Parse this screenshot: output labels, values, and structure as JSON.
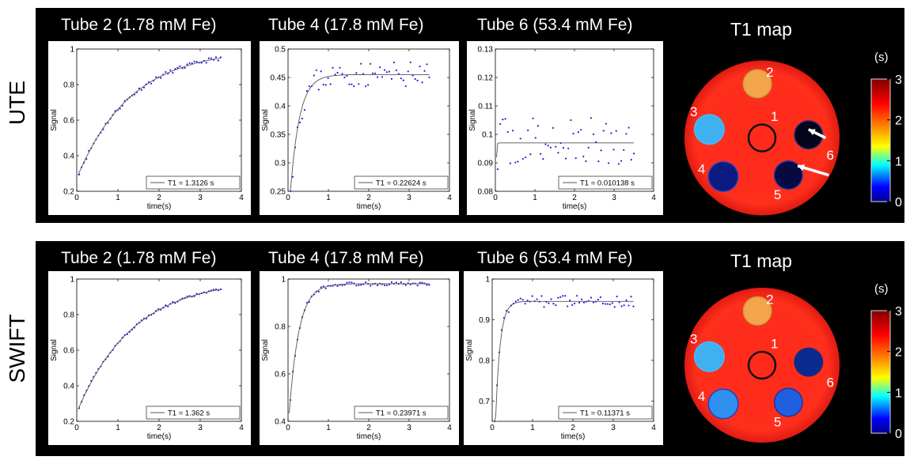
{
  "rows": [
    {
      "label": "UTE"
    },
    {
      "label": "SWIFT"
    }
  ],
  "map_title": "T1 map",
  "colorbar": {
    "unit": "(s)",
    "ticks": [
      "0",
      "1",
      "2",
      "3"
    ]
  },
  "tube_numbers": [
    "1",
    "2",
    "3",
    "4",
    "5",
    "6"
  ],
  "chart_data": [
    {
      "type": "scatter",
      "panel": "UTE",
      "title": "Tube 2 (1.78 mM Fe)",
      "xlabel": "time(s)",
      "ylabel": "Signal",
      "xlim": [
        0,
        4
      ],
      "ylim": [
        0.2,
        1
      ],
      "xticks": [
        0,
        1,
        2,
        3,
        4
      ],
      "yticks": [
        0.2,
        0.4,
        0.6,
        0.8,
        1
      ],
      "ytick_labels": [
        "0.2",
        "0.4",
        "0.6",
        "0.8",
        "1"
      ],
      "legend": "T1 = 1.3126 s",
      "fit": {
        "T1": 1.3126,
        "S0": 1.0,
        "t0": -0.42
      },
      "t_start": 0.06,
      "t_end": 3.5,
      "n": 60,
      "noise": 0.012,
      "seed": 11,
      "show_points": true
    },
    {
      "type": "scatter",
      "panel": "UTE",
      "title": "Tube 4 (17.8 mM Fe)",
      "xlabel": "time(s)",
      "ylabel": "Signal",
      "xlim": [
        0,
        4
      ],
      "ylim": [
        0.25,
        0.5
      ],
      "xticks": [
        0,
        1,
        2,
        3,
        4
      ],
      "yticks": [
        0.25,
        0.3,
        0.35,
        0.4,
        0.45,
        0.5
      ],
      "ytick_labels": [
        "0.25",
        "0.3",
        "0.35",
        "0.4",
        "0.45",
        "0.5"
      ],
      "legend": "T1 = 0.22624 s",
      "fit": {
        "T1": 0.22624,
        "S0": 0.455,
        "t0": -0.12
      },
      "t_start": 0.06,
      "t_end": 3.5,
      "n": 60,
      "noise": 0.022,
      "seed": 23,
      "show_points": true
    },
    {
      "type": "scatter",
      "panel": "UTE",
      "title": "Tube 6 (53.4 mM Fe)",
      "xlabel": "time(s)",
      "ylabel": "Signal",
      "xlim": [
        0,
        4
      ],
      "ylim": [
        0.08,
        0.13
      ],
      "xticks": [
        0,
        1,
        2,
        3,
        4
      ],
      "yticks": [
        0.08,
        0.09,
        0.1,
        0.11,
        0.12,
        0.13
      ],
      "ytick_labels": [
        "0.08",
        "0.09",
        "0.1",
        "0.11",
        "0.12",
        "0.13"
      ],
      "legend": "T1 = 0.010138 s",
      "fit": {
        "T1": 0.010138,
        "S0": 0.097,
        "t0": 0
      },
      "t_start": 0.06,
      "t_end": 3.5,
      "n": 55,
      "noise": 0.009,
      "seed": 37,
      "show_points": true
    },
    {
      "type": "scatter",
      "panel": "SWIFT",
      "title": "Tube 2 (1.78 mM Fe)",
      "xlabel": "time(s)",
      "ylabel": "Signal",
      "xlim": [
        0,
        4
      ],
      "ylim": [
        0.2,
        1
      ],
      "xticks": [
        0,
        1,
        2,
        3,
        4
      ],
      "yticks": [
        0.2,
        0.4,
        0.6,
        0.8,
        1
      ],
      "ytick_labels": [
        "0.2",
        "0.4",
        "0.6",
        "0.8",
        "1"
      ],
      "legend": "T1 = 1.362 s",
      "fit": {
        "T1": 1.362,
        "S0": 1.0,
        "t0": -0.39
      },
      "t_start": 0.06,
      "t_end": 3.5,
      "n": 60,
      "noise": 0.007,
      "seed": 41,
      "show_points": true
    },
    {
      "type": "scatter",
      "panel": "SWIFT",
      "title": "Tube 4 (17.8 mM Fe)",
      "xlabel": "time(s)",
      "ylabel": "Signal",
      "xlim": [
        0,
        4
      ],
      "ylim": [
        0.4,
        1
      ],
      "xticks": [
        0,
        1,
        2,
        3,
        4
      ],
      "yticks": [
        0.4,
        0.6,
        0.8,
        1
      ],
      "ytick_labels": [
        "0.4",
        "0.6",
        "0.8",
        "1"
      ],
      "legend": "T1 = 0.23971 s",
      "fit": {
        "T1": 0.23971,
        "S0": 0.98,
        "t0": -0.11
      },
      "t_start": 0.06,
      "t_end": 3.5,
      "n": 60,
      "noise": 0.008,
      "seed": 53,
      "show_points": true
    },
    {
      "type": "scatter",
      "panel": "SWIFT",
      "title": "Tube 6 (53.4 mM Fe)",
      "xlabel": "time(s)",
      "ylabel": "Signal",
      "xlim": [
        0,
        4
      ],
      "ylim": [
        0.65,
        1
      ],
      "xticks": [
        0,
        1,
        2,
        3,
        4
      ],
      "yticks": [
        0.7,
        0.8,
        0.9,
        1
      ],
      "ytick_labels": [
        "0.7",
        "0.8",
        "0.9",
        "1"
      ],
      "legend": "T1 = 0.11371 s",
      "fit": {
        "T1": 0.11371,
        "S0": 0.945,
        "t0": -0.05
      },
      "t_start": 0.06,
      "t_end": 3.5,
      "n": 60,
      "noise": 0.014,
      "seed": 67,
      "show_points": true
    }
  ]
}
